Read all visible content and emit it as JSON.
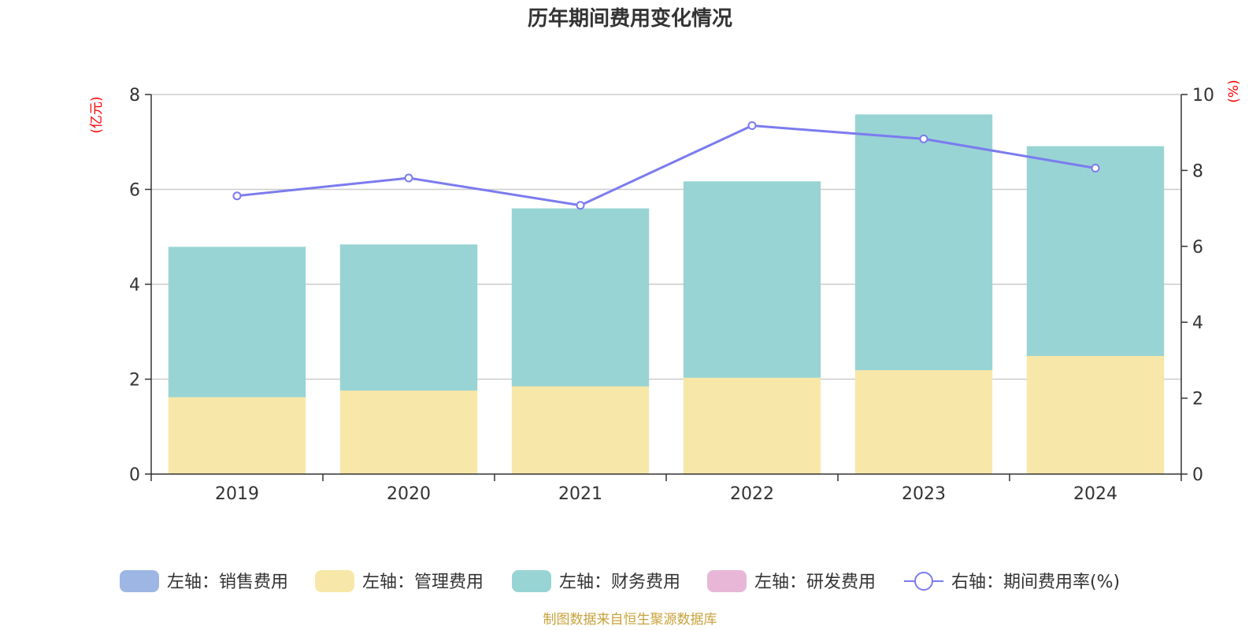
{
  "chart_data": {
    "type": "bar",
    "title": "历年期间费用变化情况",
    "categories": [
      "2019",
      "2020",
      "2021",
      "2022",
      "2023",
      "2024"
    ],
    "left_axis": {
      "unit": "(亿元)",
      "ylim": [
        0,
        8
      ],
      "ticks": [
        "0",
        "2",
        "4",
        "6",
        "8"
      ]
    },
    "right_axis": {
      "unit": "(%)",
      "ylim": [
        0,
        10
      ],
      "ticks": [
        "0",
        "2",
        "4",
        "6",
        "8",
        "10"
      ]
    },
    "grid": true,
    "legend_position": "bottom",
    "series": [
      {
        "name": "左轴：销售费用",
        "type": "bar",
        "axis": "left",
        "color": "#9db6e3",
        "values": [
          0,
          0,
          0,
          0,
          0,
          0
        ]
      },
      {
        "name": "左轴：管理费用",
        "type": "bar",
        "axis": "left",
        "color": "#f7e7a8",
        "values": [
          1.62,
          1.76,
          1.85,
          2.03,
          2.19,
          2.49
        ]
      },
      {
        "name": "左轴：财务费用",
        "type": "bar",
        "axis": "left",
        "color": "#98d4d4",
        "values": [
          3.17,
          3.08,
          3.75,
          4.14,
          5.39,
          4.42
        ]
      },
      {
        "name": "左轴：研发费用",
        "type": "bar",
        "axis": "left",
        "color": "#e8b7d8",
        "values": [
          0,
          0,
          0,
          0,
          0,
          0
        ]
      },
      {
        "name": "右轴：期间费用率(%)",
        "type": "line",
        "axis": "right",
        "color": "#7b7bef",
        "values": [
          7.33,
          7.8,
          7.08,
          9.18,
          8.83,
          8.06
        ]
      }
    ]
  },
  "footer": {
    "source": "制图数据来自恒生聚源数据库"
  }
}
